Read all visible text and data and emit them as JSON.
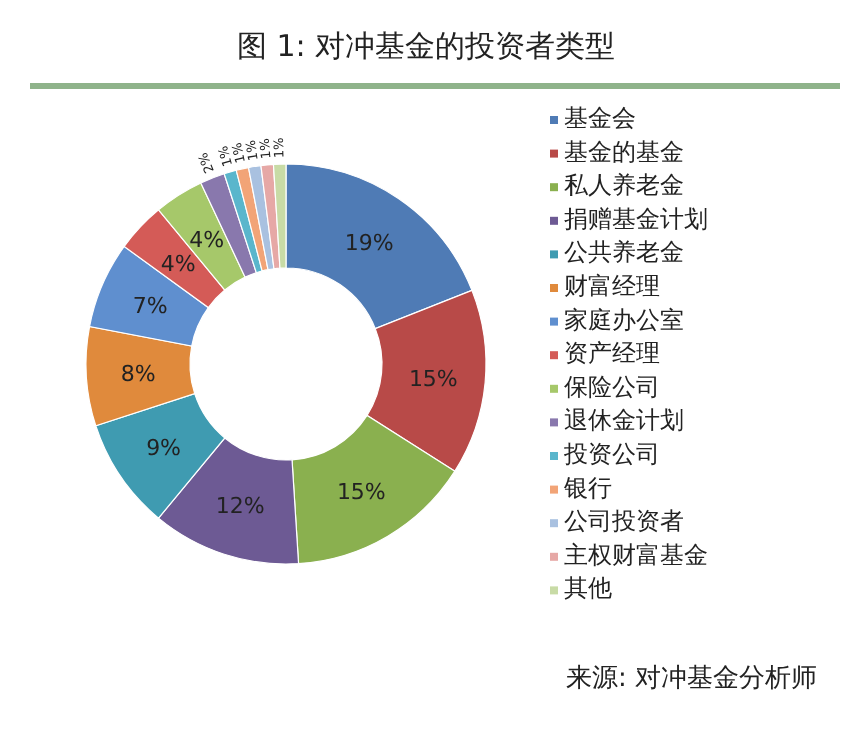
{
  "chart_data": {
    "type": "donut",
    "title": "图 1: 对冲基金的投资者类型",
    "categories": [
      "基金会",
      "基金的基金",
      "私人养老金",
      "捐赠基金计划",
      "公共养老金",
      "财富经理",
      "家庭办公室",
      "资产经理",
      "保险公司",
      "退休金计划",
      "投资公司",
      "银行",
      "公司投资者",
      "主权财富基金",
      "其他"
    ],
    "values": [
      19,
      15,
      15,
      12,
      9,
      8,
      7,
      4,
      4,
      2,
      1,
      1,
      1,
      1,
      1
    ],
    "colors": [
      "#4f7bb5",
      "#b84a48",
      "#8ab04f",
      "#6d5a94",
      "#3f9bb1",
      "#e08a3c",
      "#5f8fcf",
      "#d45b57",
      "#a6c86a",
      "#8978ad",
      "#5ab6cc",
      "#f2a477",
      "#a9c1e0",
      "#e6a8a6",
      "#c8dba6"
    ],
    "value_labels": [
      "19%",
      "15%",
      "15%",
      "12%",
      "9%",
      "8%",
      "7%",
      "4%",
      "4%",
      "2%",
      "1%",
      "1%",
      "1%",
      "1%",
      "1%"
    ],
    "legend": "right",
    "annotations": [
      "来源: 对冲基金分析师"
    ]
  }
}
